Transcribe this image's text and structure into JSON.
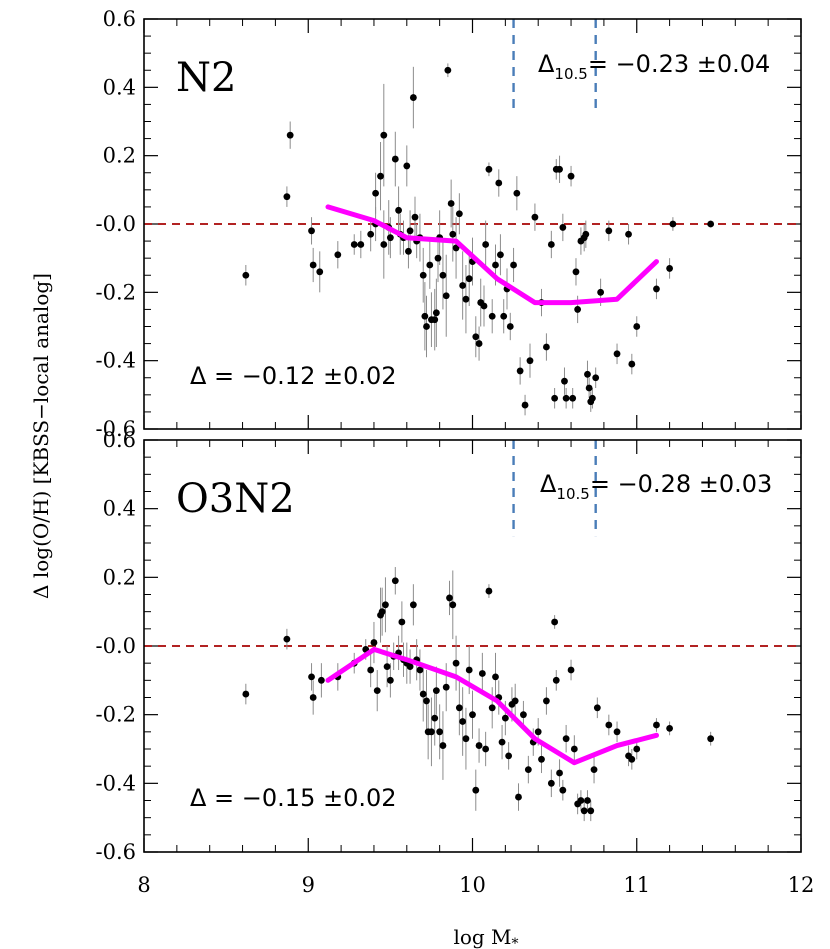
{
  "chart_data": {
    "type": "scatter",
    "xlabel": "log M",
    "xlabel_sub": "*",
    "ylabel": "Δ log(O/H) [KBSS−local analog]",
    "xlim": [
      8,
      12
    ],
    "ylim": [
      -0.6,
      0.6
    ],
    "x_ticks": [
      "8",
      "9",
      "10",
      "11",
      "12"
    ],
    "y_ticks": [
      "0.6",
      "0.4",
      "0.2",
      "-0.0",
      "-0.2",
      "-0.4",
      "-0.6"
    ],
    "colors": {
      "points": "#000000",
      "errorbars": "#8c8c8c",
      "median_line": "#ff00ff",
      "zero_line": "#b22222",
      "mass_lines": "#4a7db8"
    },
    "panels": [
      {
        "label": "N2",
        "zero_line": 0,
        "mass_lines": [
          10.25,
          10.75
        ],
        "annotation_overall": "Δ = −0.12 ±0.02",
        "annotation_mass_prefix": "Δ",
        "annotation_mass_sub": "10.5",
        "annotation_mass_value": "= −0.23 ±0.04",
        "median_line": {
          "x": [
            9.12,
            9.4,
            9.6,
            9.9,
            10.15,
            10.38,
            10.6,
            10.88,
            11.12
          ],
          "y": [
            0.05,
            0.01,
            -0.04,
            -0.05,
            -0.16,
            -0.23,
            -0.23,
            -0.22,
            -0.11
          ]
        },
        "points": [
          [
            8.62,
            -0.15,
            0.03
          ],
          [
            8.87,
            0.08,
            0.03
          ],
          [
            8.89,
            0.26,
            0.04
          ],
          [
            9.02,
            -0.02,
            0.04
          ],
          [
            9.03,
            -0.12,
            0.05
          ],
          [
            9.07,
            -0.14,
            0.06
          ],
          [
            9.18,
            -0.09,
            0.04
          ],
          [
            9.28,
            -0.06,
            0.03
          ],
          [
            9.32,
            -0.06,
            0.04
          ],
          [
            9.38,
            -0.03,
            0.05
          ],
          [
            9.41,
            0.0,
            0.05
          ],
          [
            9.41,
            0.09,
            0.06
          ],
          [
            9.44,
            0.14,
            0.1
          ],
          [
            9.46,
            0.26,
            0.15
          ],
          [
            9.46,
            -0.06,
            0.1
          ],
          [
            9.49,
            -0.01,
            0.08
          ],
          [
            9.5,
            -0.04,
            0.06
          ],
          [
            9.53,
            0.19,
            0.08
          ],
          [
            9.55,
            0.04,
            0.07
          ],
          [
            9.56,
            -0.03,
            0.06
          ],
          [
            9.58,
            -0.04,
            0.05
          ],
          [
            9.6,
            0.17,
            0.06
          ],
          [
            9.61,
            -0.08,
            0.05
          ],
          [
            9.62,
            -0.02,
            0.06
          ],
          [
            9.64,
            0.37,
            0.09
          ],
          [
            9.65,
            0.02,
            0.06
          ],
          [
            9.66,
            -0.05,
            0.05
          ],
          [
            9.68,
            -0.04,
            0.07
          ],
          [
            9.7,
            -0.15,
            0.08
          ],
          [
            9.71,
            -0.27,
            0.1
          ],
          [
            9.72,
            -0.3,
            0.09
          ],
          [
            9.74,
            -0.12,
            0.07
          ],
          [
            9.75,
            -0.28,
            0.08
          ],
          [
            9.77,
            -0.28,
            0.09
          ],
          [
            9.78,
            -0.26,
            0.1
          ],
          [
            9.79,
            -0.1,
            0.07
          ],
          [
            9.8,
            -0.04,
            0.08
          ],
          [
            9.82,
            -0.15,
            0.1
          ],
          [
            9.84,
            -0.21,
            0.12
          ],
          [
            9.85,
            0.45,
            0.02
          ],
          [
            9.87,
            0.06,
            0.07
          ],
          [
            9.88,
            -0.03,
            0.08
          ],
          [
            9.9,
            -0.07,
            0.09
          ],
          [
            9.92,
            0.03,
            0.06
          ],
          [
            9.94,
            -0.18,
            0.1
          ],
          [
            9.96,
            -0.22,
            0.1
          ],
          [
            9.98,
            -0.16,
            0.08
          ],
          [
            10.0,
            -0.11,
            0.07
          ],
          [
            10.02,
            -0.33,
            0.06
          ],
          [
            10.04,
            -0.35,
            0.05
          ],
          [
            10.05,
            -0.23,
            0.07
          ],
          [
            10.07,
            -0.24,
            0.06
          ],
          [
            10.08,
            -0.06,
            0.07
          ],
          [
            10.1,
            0.16,
            0.02
          ],
          [
            10.12,
            -0.27,
            0.05
          ],
          [
            10.14,
            -0.12,
            0.06
          ],
          [
            10.16,
            0.12,
            0.04
          ],
          [
            10.17,
            -0.09,
            0.06
          ],
          [
            10.19,
            -0.27,
            0.05
          ],
          [
            10.21,
            -0.19,
            0.06
          ],
          [
            10.23,
            -0.3,
            0.04
          ],
          [
            10.25,
            -0.12,
            0.05
          ],
          [
            10.27,
            0.09,
            0.05
          ],
          [
            10.29,
            -0.43,
            0.04
          ],
          [
            10.32,
            -0.53,
            0.03
          ],
          [
            10.35,
            -0.4,
            0.05
          ],
          [
            10.38,
            0.02,
            0.04
          ],
          [
            10.42,
            -0.23,
            0.04
          ],
          [
            10.45,
            -0.36,
            0.04
          ],
          [
            10.48,
            -0.06,
            0.04
          ],
          [
            10.5,
            -0.51,
            0.03
          ],
          [
            10.51,
            0.16,
            0.03
          ],
          [
            10.53,
            0.16,
            0.04
          ],
          [
            10.55,
            -0.01,
            0.04
          ],
          [
            10.56,
            -0.46,
            0.04
          ],
          [
            10.57,
            -0.51,
            0.03
          ],
          [
            10.6,
            0.14,
            0.03
          ],
          [
            10.61,
            -0.51,
            0.03
          ],
          [
            10.63,
            -0.14,
            0.04
          ],
          [
            10.64,
            -0.25,
            0.04
          ],
          [
            10.66,
            -0.05,
            0.04
          ],
          [
            10.68,
            -0.04,
            0.04
          ],
          [
            10.69,
            -0.03,
            0.04
          ],
          [
            10.7,
            -0.44,
            0.04
          ],
          [
            10.71,
            -0.48,
            0.03
          ],
          [
            10.72,
            -0.52,
            0.03
          ],
          [
            10.73,
            -0.51,
            0.03
          ],
          [
            10.75,
            -0.45,
            0.03
          ],
          [
            10.78,
            -0.2,
            0.04
          ],
          [
            10.83,
            -0.02,
            0.03
          ],
          [
            10.88,
            -0.38,
            0.03
          ],
          [
            10.95,
            -0.03,
            0.03
          ],
          [
            10.97,
            -0.41,
            0.03
          ],
          [
            11.0,
            -0.3,
            0.03
          ],
          [
            11.12,
            -0.19,
            0.03
          ],
          [
            11.2,
            -0.13,
            0.03
          ],
          [
            11.22,
            -0.0,
            0.02
          ],
          [
            11.45,
            -0.0,
            0.01
          ]
        ]
      },
      {
        "label": "O3N2",
        "zero_line": 0,
        "mass_lines": [
          10.25,
          10.75
        ],
        "annotation_overall": "Δ = −0.15 ±0.02",
        "annotation_mass_prefix": "Δ",
        "annotation_mass_sub": "10.5",
        "annotation_mass_value": "= −0.28 ±0.03",
        "median_line": {
          "x": [
            9.12,
            9.4,
            9.6,
            9.9,
            10.15,
            10.38,
            10.62,
            10.88,
            11.12
          ],
          "y": [
            -0.1,
            -0.01,
            -0.04,
            -0.09,
            -0.16,
            -0.27,
            -0.34,
            -0.29,
            -0.26
          ]
        },
        "points": [
          [
            8.62,
            -0.14,
            0.03
          ],
          [
            8.87,
            0.02,
            0.03
          ],
          [
            9.02,
            -0.09,
            0.04
          ],
          [
            9.03,
            -0.15,
            0.05
          ],
          [
            9.08,
            -0.1,
            0.05
          ],
          [
            9.18,
            -0.09,
            0.04
          ],
          [
            9.28,
            -0.05,
            0.03
          ],
          [
            9.35,
            -0.01,
            0.03
          ],
          [
            9.38,
            -0.07,
            0.05
          ],
          [
            9.4,
            0.01,
            0.06
          ],
          [
            9.42,
            -0.13,
            0.06
          ],
          [
            9.44,
            0.09,
            0.08
          ],
          [
            9.45,
            0.1,
            0.07
          ],
          [
            9.47,
            0.12,
            0.08
          ],
          [
            9.48,
            -0.06,
            0.06
          ],
          [
            9.5,
            -0.1,
            0.05
          ],
          [
            9.52,
            -0.03,
            0.04
          ],
          [
            9.53,
            0.19,
            0.04
          ],
          [
            9.55,
            -0.02,
            0.05
          ],
          [
            9.57,
            0.07,
            0.06
          ],
          [
            9.58,
            -0.04,
            0.05
          ],
          [
            9.6,
            -0.05,
            0.06
          ],
          [
            9.62,
            -0.06,
            0.05
          ],
          [
            9.64,
            0.12,
            0.06
          ],
          [
            9.66,
            -0.04,
            0.06
          ],
          [
            9.68,
            -0.07,
            0.06
          ],
          [
            9.7,
            -0.14,
            0.08
          ],
          [
            9.72,
            -0.16,
            0.09
          ],
          [
            9.73,
            -0.25,
            0.08
          ],
          [
            9.75,
            -0.25,
            0.1
          ],
          [
            9.77,
            -0.21,
            0.08
          ],
          [
            9.78,
            -0.13,
            0.07
          ],
          [
            9.8,
            -0.25,
            0.08
          ],
          [
            9.82,
            -0.29,
            0.1
          ],
          [
            9.84,
            -0.12,
            0.07
          ],
          [
            9.86,
            0.14,
            0.05
          ],
          [
            9.88,
            0.12,
            0.1
          ],
          [
            9.9,
            -0.05,
            0.08
          ],
          [
            9.92,
            -0.18,
            0.08
          ],
          [
            9.94,
            -0.22,
            0.1
          ],
          [
            9.96,
            -0.27,
            0.09
          ],
          [
            9.98,
            -0.07,
            0.07
          ],
          [
            10.0,
            -0.2,
            0.07
          ],
          [
            10.02,
            -0.42,
            0.06
          ],
          [
            10.04,
            -0.29,
            0.05
          ],
          [
            10.06,
            -0.08,
            0.06
          ],
          [
            10.08,
            -0.3,
            0.05
          ],
          [
            10.1,
            0.16,
            0.02
          ],
          [
            10.12,
            -0.18,
            0.06
          ],
          [
            10.14,
            -0.09,
            0.07
          ],
          [
            10.16,
            -0.15,
            0.05
          ],
          [
            10.18,
            -0.28,
            0.05
          ],
          [
            10.2,
            -0.21,
            0.05
          ],
          [
            10.22,
            -0.32,
            0.04
          ],
          [
            10.24,
            -0.17,
            0.05
          ],
          [
            10.26,
            -0.16,
            0.05
          ],
          [
            10.28,
            -0.44,
            0.04
          ],
          [
            10.31,
            -0.2,
            0.04
          ],
          [
            10.34,
            -0.36,
            0.04
          ],
          [
            10.37,
            -0.28,
            0.04
          ],
          [
            10.4,
            -0.25,
            0.04
          ],
          [
            10.42,
            -0.33,
            0.04
          ],
          [
            10.45,
            -0.16,
            0.04
          ],
          [
            10.48,
            -0.4,
            0.04
          ],
          [
            10.5,
            0.07,
            0.02
          ],
          [
            10.51,
            -0.1,
            0.03
          ],
          [
            10.53,
            -0.37,
            0.04
          ],
          [
            10.55,
            -0.42,
            0.03
          ],
          [
            10.57,
            -0.27,
            0.04
          ],
          [
            10.6,
            -0.07,
            0.03
          ],
          [
            10.62,
            -0.3,
            0.04
          ],
          [
            10.64,
            -0.46,
            0.03
          ],
          [
            10.66,
            -0.45,
            0.03
          ],
          [
            10.68,
            -0.48,
            0.03
          ],
          [
            10.7,
            -0.45,
            0.03
          ],
          [
            10.72,
            -0.48,
            0.03
          ],
          [
            10.74,
            -0.36,
            0.04
          ],
          [
            10.76,
            -0.18,
            0.03
          ],
          [
            10.83,
            -0.23,
            0.03
          ],
          [
            10.88,
            -0.25,
            0.03
          ],
          [
            10.95,
            -0.32,
            0.03
          ],
          [
            10.97,
            -0.33,
            0.03
          ],
          [
            11.0,
            -0.3,
            0.03
          ],
          [
            11.12,
            -0.23,
            0.02
          ],
          [
            11.2,
            -0.24,
            0.02
          ],
          [
            11.45,
            -0.27,
            0.02
          ]
        ]
      }
    ]
  }
}
